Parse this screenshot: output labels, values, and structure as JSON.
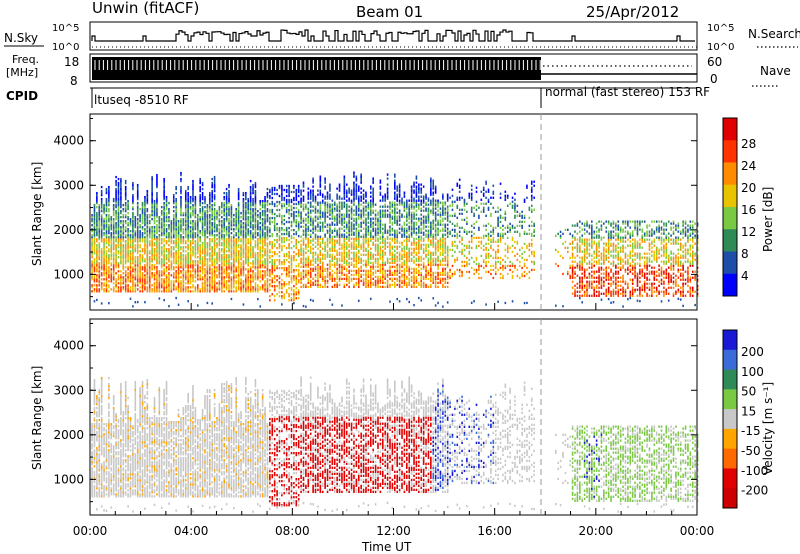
{
  "header": {
    "station": "Unwin (fitACF)",
    "beam": "Beam 01",
    "date": "25/Apr/2012"
  },
  "panels": {
    "nsky_label": "N.Sky",
    "nsky_ticks": [
      "10^5",
      "10^0"
    ],
    "nsearch_label": "N.Search",
    "nsearch_ticks": [
      "10^5",
      "10^0"
    ],
    "freq_label_line1": "Freq.",
    "freq_label_line2": "[MHz]",
    "freq_ticks": [
      "18",
      "8"
    ],
    "nave_label": "Nave",
    "nave_ticks": [
      "60",
      "0"
    ],
    "cpid_label": "CPID",
    "cpid_segments": [
      "ltuseq -8510 RF",
      "normal (fast stereo) 153 RF"
    ]
  },
  "chart_data": [
    {
      "type": "heatmap",
      "parameter": "power",
      "ylabel": "Slant Range [km]",
      "xlabel": "",
      "yticks": [
        "1000",
        "2000",
        "3000",
        "4000"
      ],
      "ylim": [
        200,
        4600
      ],
      "colorbar_label": "Power [dB]",
      "colorbar_ticks": [
        "4",
        "8",
        "12",
        "16",
        "20",
        "24",
        "28"
      ],
      "colorbar_colors": [
        "#0000ff",
        "#1e4fa8",
        "#2e8b57",
        "#7ac943",
        "#e8c400",
        "#ff8c00",
        "#ff3300",
        "#e00000"
      ],
      "colorbar_range": [
        0,
        30
      ],
      "mode_change_time": "18:00"
    },
    {
      "type": "heatmap",
      "parameter": "velocity",
      "ylabel": "Slant Range [km]",
      "xlabel": "Time UT",
      "xticks": [
        "00:00",
        "04:00",
        "08:00",
        "12:00",
        "16:00",
        "20:00",
        "00:00"
      ],
      "yticks": [
        "1000",
        "2000",
        "3000",
        "4000"
      ],
      "ylim": [
        200,
        4600
      ],
      "colorbar_label": "Velocity [m s⁻¹]",
      "colorbar_ticks": [
        "200",
        "100",
        "50",
        "15",
        "-15",
        "-50",
        "-100",
        "-200"
      ],
      "colorbar_colors": [
        "#1a1ad6",
        "#3a6bd6",
        "#2e8b57",
        "#7ac943",
        "#c8c8c8",
        "#ffa500",
        "#ff6a00",
        "#e00000",
        "#cc0000"
      ],
      "colorbar_range": [
        -250,
        250
      ],
      "mode_change_time": "18:00"
    }
  ]
}
